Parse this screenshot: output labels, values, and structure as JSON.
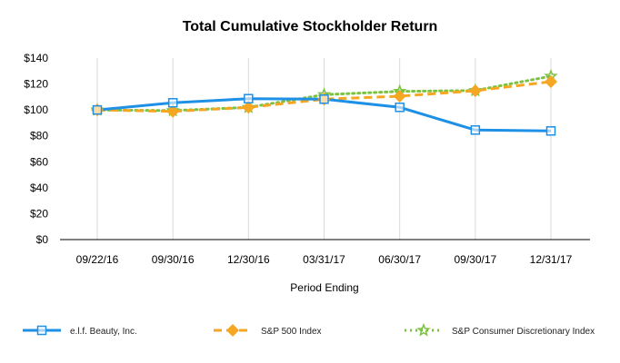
{
  "chart_data": {
    "type": "line",
    "title": "Total Cumulative Stockholder Return",
    "xlabel": "Period Ending",
    "ylabel": "",
    "categories": [
      "09/22/16",
      "09/30/16",
      "12/30/16",
      "03/31/17",
      "06/30/17",
      "09/30/17",
      "12/31/17"
    ],
    "ylim": [
      0,
      140
    ],
    "yticks": [
      0,
      20,
      40,
      60,
      80,
      100,
      120,
      140
    ],
    "ytick_labels": [
      "$0",
      "$20",
      "$40",
      "$60",
      "$80",
      "$100",
      "$120",
      "$140"
    ],
    "grid": "vertical",
    "legend_position": "bottom",
    "series": [
      {
        "name": "e.l.f. Beauty, Inc.",
        "color": "#1E90E6",
        "marker": "square-open",
        "style": "solid",
        "values": [
          100,
          105.5,
          108.7,
          108.3,
          102,
          84.5,
          83.8
        ]
      },
      {
        "name": "S&P 500 Index",
        "color": "#F5A623",
        "marker": "diamond",
        "style": "dashed",
        "values": [
          100,
          98.9,
          102,
          108.3,
          110.6,
          114.8,
          121.8
        ]
      },
      {
        "name": "S&P Consumer Discretionary Index",
        "color": "#7CC242",
        "marker": "star-open",
        "style": "dotted",
        "values": [
          100,
          99.5,
          102,
          111.8,
          114.3,
          115,
          126
        ]
      }
    ]
  }
}
